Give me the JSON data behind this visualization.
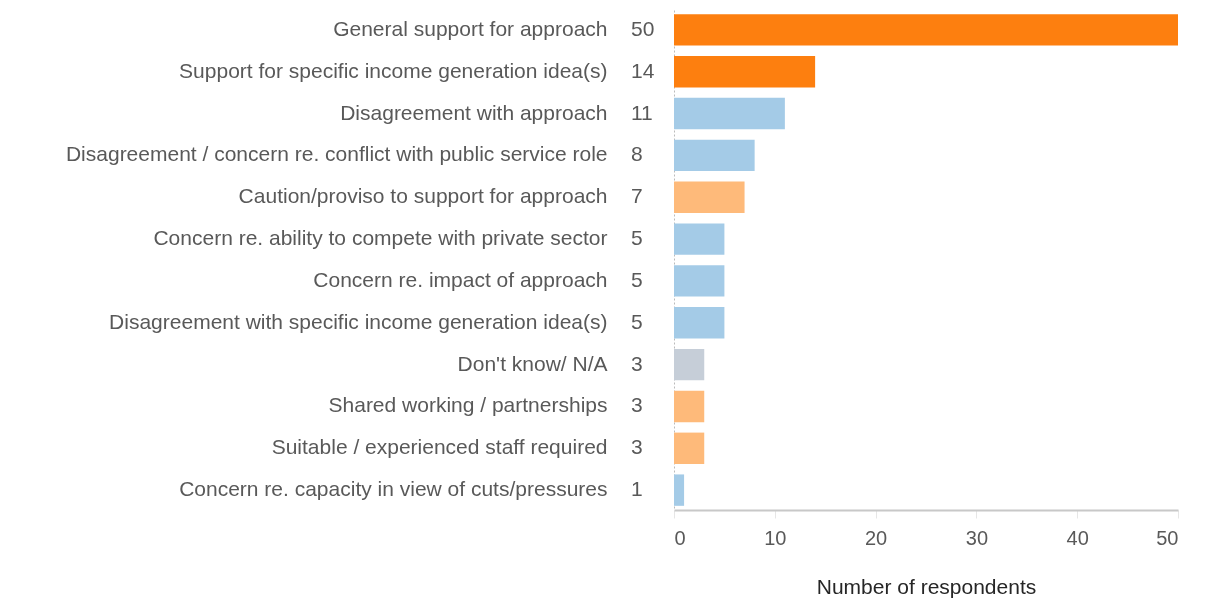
{
  "chart_data": {
    "type": "bar",
    "orientation": "horizontal",
    "xlabel": "Number of respondents",
    "categories": [
      "General support for approach",
      "Support for specific income generation idea(s)",
      "Disagreement with approach",
      "Disagreement / concern re. conflict with public service role",
      "Caution/proviso to support for approach",
      "Concern re. ability to compete with private sector",
      "Concern re. impact of approach",
      "Disagreement with specific income generation idea(s)",
      "Don't know/ N/A",
      "Shared working / partnerships",
      "Suitable / experienced staff required",
      "Concern re. capacity in view of cuts/pressures"
    ],
    "values": [
      50,
      14,
      11,
      8,
      7,
      5,
      5,
      5,
      3,
      3,
      3,
      1
    ],
    "colors": [
      "#fd7f0f",
      "#fd7f0f",
      "#a4cbe7",
      "#a4cbe7",
      "#feba7a",
      "#a4cbe7",
      "#a4cbe7",
      "#a4cbe7",
      "#c6ced8",
      "#feba7a",
      "#feba7a",
      "#a4cbe7"
    ],
    "xlim": [
      0,
      50
    ],
    "xticks": [
      0,
      10,
      20,
      30,
      40,
      50
    ],
    "data_labels": true,
    "grid": false
  }
}
